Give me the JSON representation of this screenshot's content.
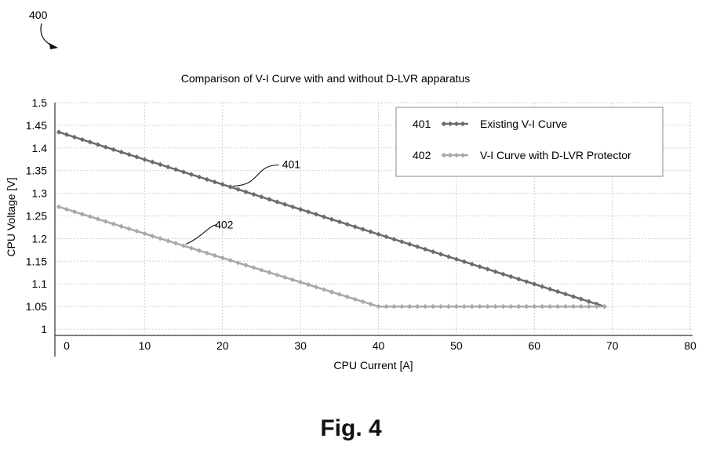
{
  "figure": {
    "ref_number": "400",
    "caption": "Fig. 4"
  },
  "chart_data": {
    "type": "line",
    "title": "Comparison of V-I Curve with and without D-LVR apparatus",
    "xlabel": "CPU Current [A]",
    "ylabel": "CPU Voltage [V]",
    "xlim": [
      0,
      80
    ],
    "ylim": [
      1,
      1.5
    ],
    "x_ticks": [
      0,
      10,
      20,
      30,
      40,
      50,
      60,
      70,
      80
    ],
    "y_ticks": [
      1,
      1.05,
      1.1,
      1.15,
      1.2,
      1.25,
      1.3,
      1.35,
      1.4,
      1.45,
      1.5
    ],
    "grid": true,
    "legend_position": "top-right",
    "series": [
      {
        "name": "Existing V-I Curve",
        "ref": "401",
        "color": "#6b6b6b",
        "x": [
          -1,
          69
        ],
        "y": [
          1.435,
          1.05
        ]
      },
      {
        "name": "V-I Curve with D-LVR Protector",
        "ref": "402",
        "color": "#a9a9a9",
        "x": [
          -1,
          40,
          69
        ],
        "y": [
          1.27,
          1.05,
          1.05
        ]
      }
    ],
    "annotations": [
      {
        "text": "401",
        "series": 0,
        "at_x": 21
      },
      {
        "text": "402",
        "series": 1,
        "at_x": 15
      }
    ]
  }
}
